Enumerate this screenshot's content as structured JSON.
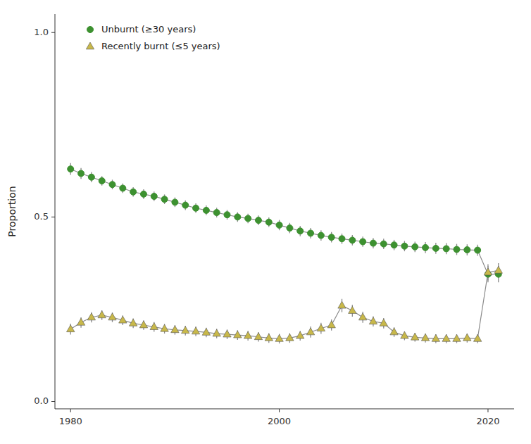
{
  "chart_data": {
    "type": "line",
    "y_label": "Proportion",
    "x": [
      1980,
      1981,
      1982,
      1983,
      1984,
      1985,
      1986,
      1987,
      1988,
      1989,
      1990,
      1991,
      1992,
      1993,
      1994,
      1995,
      1996,
      1997,
      1998,
      1999,
      2000,
      2001,
      2002,
      2003,
      2004,
      2005,
      2006,
      2007,
      2008,
      2009,
      2010,
      2011,
      2012,
      2013,
      2014,
      2015,
      2016,
      2017,
      2018,
      2019,
      2020,
      2021
    ],
    "series": [
      {
        "name": "Unburnt (≥30 years)",
        "color": "#3d9130",
        "marker": "circle",
        "values": [
          0.63,
          0.618,
          0.608,
          0.598,
          0.588,
          0.578,
          0.568,
          0.562,
          0.556,
          0.548,
          0.54,
          0.532,
          0.524,
          0.518,
          0.512,
          0.506,
          0.5,
          0.496,
          0.491,
          0.486,
          0.478,
          0.47,
          0.462,
          0.456,
          0.45,
          0.445,
          0.441,
          0.437,
          0.433,
          0.429,
          0.427,
          0.424,
          0.421,
          0.419,
          0.417,
          0.415,
          0.414,
          0.412,
          0.411,
          0.41,
          0.345,
          0.345
        ],
        "errors": [
          0.016,
          0.015,
          0.014,
          0.013,
          0.013,
          0.013,
          0.013,
          0.013,
          0.013,
          0.013,
          0.013,
          0.013,
          0.013,
          0.013,
          0.013,
          0.013,
          0.013,
          0.013,
          0.013,
          0.013,
          0.014,
          0.014,
          0.014,
          0.014,
          0.014,
          0.014,
          0.014,
          0.014,
          0.014,
          0.014,
          0.014,
          0.014,
          0.014,
          0.014,
          0.015,
          0.015,
          0.015,
          0.015,
          0.015,
          0.015,
          0.022,
          0.022
        ]
      },
      {
        "name": "Recently burnt (≤5 years)",
        "color": "#c8b84a",
        "marker": "triangle",
        "values": [
          0.196,
          0.214,
          0.228,
          0.234,
          0.228,
          0.22,
          0.212,
          0.207,
          0.202,
          0.197,
          0.194,
          0.192,
          0.19,
          0.187,
          0.184,
          0.182,
          0.18,
          0.178,
          0.175,
          0.172,
          0.17,
          0.172,
          0.178,
          0.188,
          0.198,
          0.207,
          0.26,
          0.246,
          0.228,
          0.217,
          0.212,
          0.188,
          0.178,
          0.174,
          0.172,
          0.17,
          0.17,
          0.17,
          0.172,
          0.17,
          0.35,
          0.355
        ],
        "errors": [
          0.015,
          0.014,
          0.014,
          0.013,
          0.013,
          0.013,
          0.013,
          0.013,
          0.013,
          0.013,
          0.013,
          0.013,
          0.013,
          0.013,
          0.013,
          0.013,
          0.013,
          0.013,
          0.013,
          0.013,
          0.013,
          0.013,
          0.013,
          0.015,
          0.015,
          0.015,
          0.018,
          0.016,
          0.015,
          0.014,
          0.014,
          0.013,
          0.012,
          0.012,
          0.012,
          0.012,
          0.012,
          0.012,
          0.012,
          0.012,
          0.022,
          0.02
        ]
      }
    ],
    "xlim": [
      1978.5,
      2022.5
    ],
    "xticks": [
      1980,
      2000,
      2020
    ],
    "ylim": [
      -0.02,
      1.05
    ],
    "yticks": [
      {
        "value": 0,
        "label": "0.0"
      },
      0.5,
      {
        "value": 1,
        "label": "1.0"
      }
    ],
    "grid": false,
    "legend": "upper left"
  }
}
